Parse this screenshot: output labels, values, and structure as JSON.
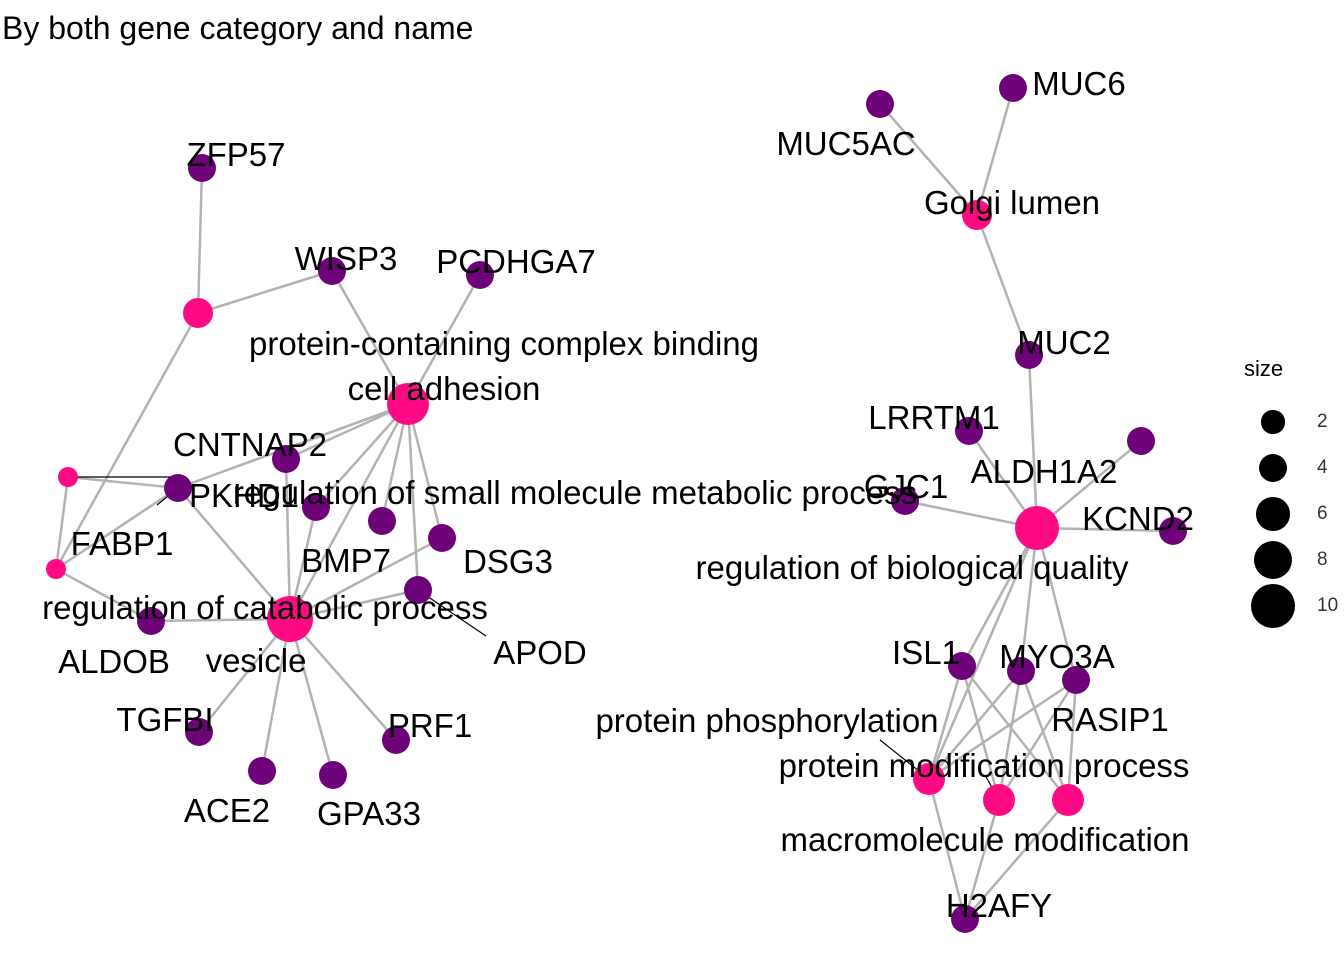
{
  "title": "By both gene category and name",
  "colors": {
    "category": "#ff0a85",
    "gene": "#6e0278",
    "edge": "#b3b3b3",
    "label_line": "#000000"
  },
  "nodes": [
    {
      "id": "cat-pcb",
      "label": "protein-containing complex binding",
      "kind": "category",
      "size": 3
    },
    {
      "id": "cat-cell-adhesion",
      "label": "cell adhesion",
      "kind": "category",
      "size": 8
    },
    {
      "id": "cat-small-mol",
      "label": "regulation of small molecule metabolic process",
      "kind": "category",
      "size": 1
    },
    {
      "id": "cat-catabolic",
      "label": "regulation of catabolic process",
      "kind": "category",
      "size": 1
    },
    {
      "id": "cat-vesicle",
      "label": "vesicle",
      "kind": "category",
      "size": 10
    },
    {
      "id": "cat-golgi",
      "label": "Golgi lumen",
      "kind": "category",
      "size": 2
    },
    {
      "id": "cat-bio-quality",
      "label": "regulation of biological quality",
      "kind": "category",
      "size": 9
    },
    {
      "id": "cat-phosph",
      "label": "protein phosphorylation",
      "kind": "category",
      "size": 4
    },
    {
      "id": "cat-mod-process",
      "label": "protein modification process",
      "kind": "category",
      "size": 4
    },
    {
      "id": "cat-macro-mod",
      "label": "macromolecule modification",
      "kind": "category",
      "size": 4
    },
    {
      "id": "gene-zfp57",
      "label": "ZFP57",
      "kind": "gene"
    },
    {
      "id": "gene-wisp3",
      "label": "WISP3",
      "kind": "gene"
    },
    {
      "id": "gene-pcdhga7",
      "label": "PCDHGA7",
      "kind": "gene"
    },
    {
      "id": "gene-cntnap2",
      "label": "CNTNAP2",
      "kind": "gene"
    },
    {
      "id": "gene-pkhd1",
      "label": "PKHD1",
      "kind": "gene"
    },
    {
      "id": "gene-fabp1",
      "label": "FABP1",
      "kind": "gene"
    },
    {
      "id": "gene-bmp7",
      "label": "BMP7",
      "kind": "gene"
    },
    {
      "id": "gene-unl1",
      "label": "",
      "kind": "gene"
    },
    {
      "id": "gene-dsg3",
      "label": "DSG3",
      "kind": "gene"
    },
    {
      "id": "gene-apod",
      "label": "APOD",
      "kind": "gene"
    },
    {
      "id": "gene-aldob",
      "label": "ALDOB",
      "kind": "gene"
    },
    {
      "id": "gene-tgfbi",
      "label": "TGFBI",
      "kind": "gene"
    },
    {
      "id": "gene-ace2",
      "label": "ACE2",
      "kind": "gene"
    },
    {
      "id": "gene-gpa33",
      "label": "GPA33",
      "kind": "gene"
    },
    {
      "id": "gene-prf1",
      "label": "PRF1",
      "kind": "gene"
    },
    {
      "id": "gene-muc5ac",
      "label": "MUC5AC",
      "kind": "gene"
    },
    {
      "id": "gene-muc6",
      "label": "MUC6",
      "kind": "gene"
    },
    {
      "id": "gene-muc2",
      "label": "MUC2",
      "kind": "gene"
    },
    {
      "id": "gene-lrrtm1",
      "label": "LRRTM1",
      "kind": "gene"
    },
    {
      "id": "gene-aldh1a2",
      "label": "ALDH1A2",
      "kind": "gene"
    },
    {
      "id": "gene-gjc1",
      "label": "GJC1",
      "kind": "gene"
    },
    {
      "id": "gene-kcnd2",
      "label": "KCND2",
      "kind": "gene"
    },
    {
      "id": "gene-isl1",
      "label": "ISL1",
      "kind": "gene"
    },
    {
      "id": "gene-myo3a",
      "label": "MYO3A",
      "kind": "gene"
    },
    {
      "id": "gene-rasip1",
      "label": "RASIP1",
      "kind": "gene"
    },
    {
      "id": "gene-h2afy",
      "label": "H2AFY",
      "kind": "gene"
    }
  ],
  "edges": [
    [
      "gene-zfp57",
      "cat-pcb"
    ],
    [
      "gene-wisp3",
      "cat-pcb"
    ],
    [
      "cat-pcb",
      "cat-catabolic"
    ],
    [
      "gene-wisp3",
      "cat-cell-adhesion"
    ],
    [
      "gene-pcdhga7",
      "cat-cell-adhesion"
    ],
    [
      "gene-cntnap2",
      "cat-cell-adhesion"
    ],
    [
      "gene-pkhd1",
      "cat-cell-adhesion"
    ],
    [
      "gene-bmp7",
      "cat-cell-adhesion"
    ],
    [
      "gene-unl1",
      "cat-cell-adhesion"
    ],
    [
      "gene-dsg3",
      "cat-cell-adhesion"
    ],
    [
      "gene-apod",
      "cat-cell-adhesion"
    ],
    [
      "cat-vesicle",
      "cat-cell-adhesion"
    ],
    [
      "cat-small-mol",
      "gene-pkhd1"
    ],
    [
      "cat-small-mol",
      "cat-catabolic"
    ],
    [
      "cat-catabolic",
      "gene-aldob"
    ],
    [
      "cat-catabolic",
      "gene-pkhd1"
    ],
    [
      "cat-vesicle",
      "gene-pkhd1"
    ],
    [
      "cat-vesicle",
      "gene-cntnap2"
    ],
    [
      "cat-vesicle",
      "gene-bmp7"
    ],
    [
      "cat-vesicle",
      "gene-dsg3"
    ],
    [
      "cat-vesicle",
      "gene-apod"
    ],
    [
      "cat-vesicle",
      "gene-aldob"
    ],
    [
      "cat-vesicle",
      "gene-tgfbi"
    ],
    [
      "cat-vesicle",
      "gene-ace2"
    ],
    [
      "cat-vesicle",
      "gene-gpa33"
    ],
    [
      "cat-vesicle",
      "gene-prf1"
    ],
    [
      "gene-muc5ac",
      "cat-golgi"
    ],
    [
      "gene-muc6",
      "cat-golgi"
    ],
    [
      "gene-muc2",
      "cat-golgi"
    ],
    [
      "gene-muc2",
      "cat-bio-quality"
    ],
    [
      "gene-lrrtm1",
      "cat-bio-quality"
    ],
    [
      "gene-aldh1a2",
      "cat-bio-quality"
    ],
    [
      "gene-gjc1",
      "cat-bio-quality"
    ],
    [
      "gene-kcnd2",
      "cat-bio-quality"
    ],
    [
      "gene-isl1",
      "cat-bio-quality"
    ],
    [
      "gene-myo3a",
      "cat-bio-quality"
    ],
    [
      "gene-rasip1",
      "cat-bio-quality"
    ],
    [
      "cat-phosph",
      "cat-bio-quality"
    ],
    [
      "gene-isl1",
      "cat-phosph"
    ],
    [
      "gene-isl1",
      "cat-mod-process"
    ],
    [
      "gene-isl1",
      "cat-macro-mod"
    ],
    [
      "gene-myo3a",
      "cat-phosph"
    ],
    [
      "gene-myo3a",
      "cat-mod-process"
    ],
    [
      "gene-myo3a",
      "cat-macro-mod"
    ],
    [
      "gene-rasip1",
      "cat-phosph"
    ],
    [
      "gene-rasip1",
      "cat-mod-process"
    ],
    [
      "gene-rasip1",
      "cat-macro-mod"
    ],
    [
      "gene-h2afy",
      "cat-phosph"
    ],
    [
      "gene-h2afy",
      "cat-mod-process"
    ],
    [
      "gene-h2afy",
      "cat-macro-mod"
    ]
  ],
  "legend": {
    "title": "size",
    "keys": [
      {
        "label": "2",
        "value": 2
      },
      {
        "label": "4",
        "value": 4
      },
      {
        "label": "6",
        "value": 6
      },
      {
        "label": "8",
        "value": 8
      },
      {
        "label": "10",
        "value": 10
      }
    ]
  }
}
